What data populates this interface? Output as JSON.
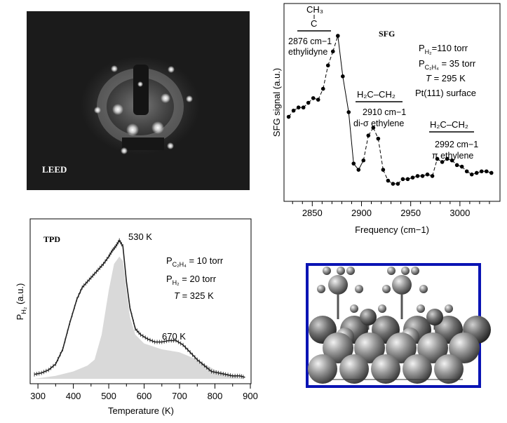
{
  "chart_data": [
    {
      "type": "image",
      "label": "LEED"
    },
    {
      "type": "line",
      "label": "SFG",
      "xlabel": "Frequency (cm−1)",
      "ylabel": "SFG signal (a.u.)",
      "xlim": [
        2822,
        3040
      ],
      "ylim": [
        0,
        1
      ],
      "xticks": [
        2850,
        2900,
        2950,
        3000
      ],
      "xtick_labels": [
        "2850",
        "2900",
        "2950",
        "3000"
      ],
      "grid": false,
      "x": [
        2826,
        2831,
        2836,
        2841,
        2846,
        2851,
        2856,
        2861,
        2866,
        2871,
        2876,
        2881,
        2887,
        2892,
        2897,
        2902,
        2907,
        2912,
        2917,
        2922,
        2927,
        2932,
        2937,
        2942,
        2947,
        2952,
        2957,
        2962,
        2967,
        2972,
        2977,
        2982,
        2987,
        2992,
        2997,
        3002,
        3007,
        3012,
        3017,
        3022,
        3027,
        3032
      ],
      "y": [
        0.43,
        0.47,
        0.49,
        0.49,
        0.52,
        0.55,
        0.54,
        0.61,
        0.76,
        0.85,
        0.95,
        0.69,
        0.46,
        0.13,
        0.09,
        0.15,
        0.31,
        0.36,
        0.29,
        0.09,
        0.02,
        0.0,
        0.0,
        0.03,
        0.03,
        0.04,
        0.05,
        0.05,
        0.06,
        0.05,
        0.16,
        0.14,
        0.16,
        0.15,
        0.12,
        0.11,
        0.08,
        0.06,
        0.07,
        0.08,
        0.08,
        0.07
      ],
      "peak_labels": [
        {
          "lines": [
            "CH₃",
            "C",
            "2876 cm−1",
            "ethylidyne"
          ]
        },
        {
          "lines": [
            "H₂C–CH₂",
            "2910 cm−1",
            "di-σ ethylene"
          ]
        },
        {
          "lines": [
            "H₂C–CH₂",
            "2992 cm−1",
            "π ethylene"
          ]
        }
      ],
      "conditions": {
        "p_h2": "110 torr",
        "p_c2h4": "35 torr",
        "temperature": "295 K",
        "surface": "Pt(111) surface"
      }
    },
    {
      "type": "area",
      "label": "TPD",
      "xlabel": "Temperature (K)",
      "ylabel": "P",
      "ylabel_subscript": "H₂",
      "ylabel_unit": " (a.u.)",
      "xlim": [
        280,
        900
      ],
      "ylim": [
        0,
        1
      ],
      "xticks": [
        300,
        400,
        500,
        600,
        700,
        800,
        900
      ],
      "xtick_labels": [
        "300",
        "400",
        "500",
        "600",
        "700",
        "800",
        "900"
      ],
      "grid": false,
      "series": [
        {
          "x": [
            290,
            310,
            330,
            350,
            370,
            390,
            410,
            425,
            440,
            455,
            470,
            485,
            500,
            510,
            520,
            530,
            540,
            550,
            560,
            575,
            590,
            610,
            630,
            650,
            670,
            690,
            710,
            730,
            750,
            770,
            790,
            810,
            830,
            850,
            870,
            885
          ],
          "y": [
            0.03,
            0.04,
            0.06,
            0.1,
            0.2,
            0.38,
            0.54,
            0.62,
            0.66,
            0.7,
            0.74,
            0.78,
            0.83,
            0.87,
            0.9,
            0.94,
            0.9,
            0.66,
            0.48,
            0.34,
            0.3,
            0.27,
            0.25,
            0.25,
            0.26,
            0.26,
            0.23,
            0.18,
            0.13,
            0.09,
            0.05,
            0.04,
            0.03,
            0.02,
            0.02,
            0.01
          ]
        },
        {
          "name": "shaded",
          "x": [
            290,
            350,
            400,
            440,
            460,
            480,
            500,
            515,
            530,
            540,
            550,
            560,
            575,
            600,
            650,
            700,
            750,
            800,
            850,
            885
          ],
          "y": [
            0.0,
            0.02,
            0.05,
            0.09,
            0.13,
            0.3,
            0.6,
            0.78,
            0.83,
            0.8,
            0.6,
            0.42,
            0.3,
            0.24,
            0.2,
            0.18,
            0.13,
            0.06,
            0.02,
            0.0
          ]
        }
      ],
      "peak_labels": [
        "530 K",
        "670 K"
      ],
      "conditions": {
        "p_c2h4": "10 torr",
        "p_h2": "20 torr",
        "temperature": "325 K"
      }
    }
  ],
  "sfg_cond": {
    "ph2_sym": "P",
    "ph2_sub": "H₂",
    "ph2_val": "=110 torr",
    "pc2h4_sym": "P",
    "pc2h4_sub": "C₂H₄",
    "pc2h4_val": " = 35 torr",
    "t_sym": "T",
    "t_val": " = 295 K",
    "surface": "Pt(111) surface"
  },
  "tpd_cond": {
    "pc2h4_sym": "P",
    "pc2h4_sub": "C₂H₄",
    "pc2h4_val": " = 10 torr",
    "ph2_sym": "P",
    "ph2_sub": "H₂",
    "ph2_val": " = 20 torr",
    "t_sym": "T",
    "t_val": " = 325 K"
  },
  "colors": {
    "leed_bg": "#1b1b1b",
    "shade": "#d9d9d9",
    "model_frame": "#0a14b4",
    "sphere": "#8a8a8a"
  }
}
